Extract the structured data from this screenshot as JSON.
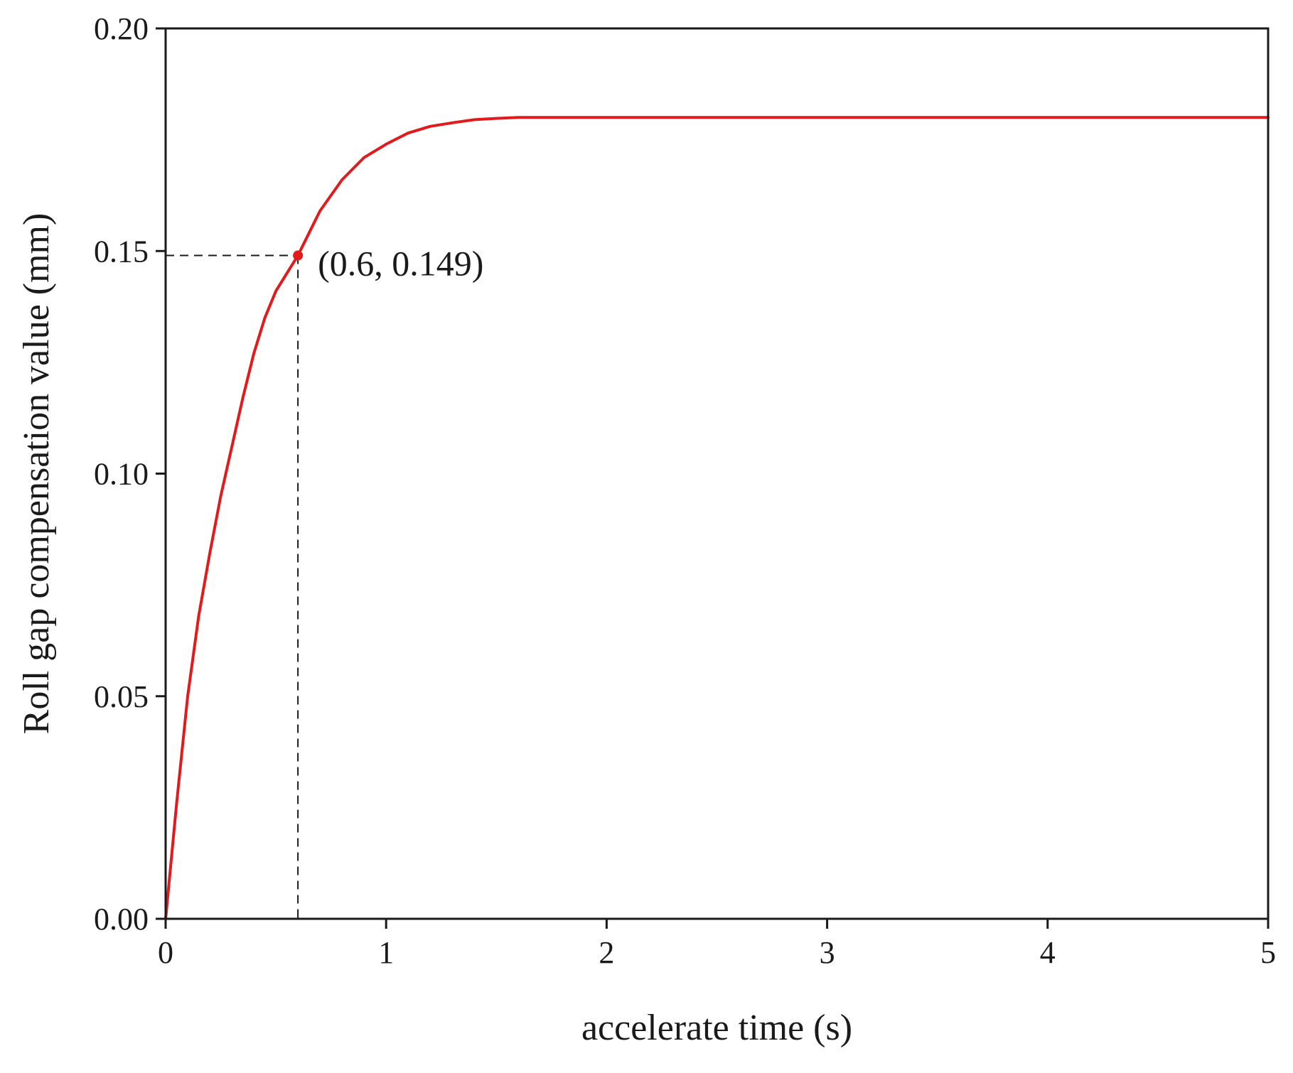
{
  "chart_data": {
    "type": "line",
    "title": "",
    "xlabel": "accelerate time (s)",
    "ylabel": "Roll gap compensation value (mm)",
    "xlim": [
      0,
      5
    ],
    "ylim": [
      0,
      0.2
    ],
    "xticks": [
      0,
      1,
      2,
      3,
      4,
      5
    ],
    "xtick_labels": [
      "0",
      "1",
      "2",
      "3",
      "4",
      "5"
    ],
    "yticks": [
      0,
      0.05,
      0.1,
      0.15,
      0.2
    ],
    "ytick_labels": [
      "0.00",
      "0.05",
      "0.10",
      "0.15",
      "0.20"
    ],
    "grid": false,
    "legend": "none",
    "series": [
      {
        "color": "#e31a1c",
        "x": [
          0,
          0.05,
          0.1,
          0.15,
          0.2,
          0.25,
          0.3,
          0.35,
          0.4,
          0.45,
          0.5,
          0.55,
          0.6,
          0.65,
          0.7,
          0.8,
          0.9,
          1.0,
          1.1,
          1.2,
          1.3,
          1.4,
          1.5,
          1.6,
          1.8,
          2.0,
          2.5,
          3.0,
          3.5,
          4.0,
          4.5,
          5.0
        ],
        "y": [
          0,
          0.026,
          0.05,
          0.068,
          0.082,
          0.095,
          0.106,
          0.117,
          0.127,
          0.135,
          0.141,
          0.145,
          0.149,
          0.154,
          0.159,
          0.166,
          0.171,
          0.174,
          0.1765,
          0.178,
          0.1788,
          0.1795,
          0.1798,
          0.18,
          0.18,
          0.18,
          0.18,
          0.18,
          0.18,
          0.18,
          0.18,
          0.18
        ]
      }
    ],
    "annotation": {
      "label": "(0.6, 0.149)",
      "x": 0.6,
      "y": 0.149,
      "color": "#e31a1c"
    }
  }
}
